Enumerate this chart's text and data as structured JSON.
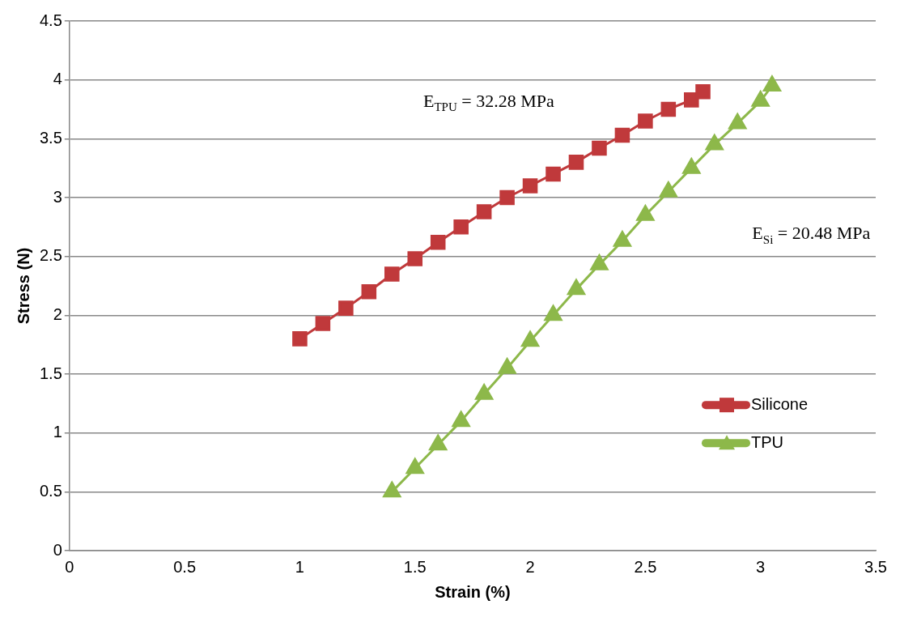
{
  "chart_data": {
    "type": "scatter",
    "xlabel": "Strain (%)",
    "ylabel": "Stress (N)",
    "xlim": [
      0,
      3.5
    ],
    "xticks": [
      0,
      0.5,
      1,
      1.5,
      2,
      2.5,
      3,
      3.5
    ],
    "ylim": [
      0,
      4.5
    ],
    "yticks": [
      0,
      0.5,
      1,
      1.5,
      2,
      2.5,
      3,
      3.5,
      4,
      4.5
    ],
    "grid": "y",
    "legend": "right",
    "line_style": "solid",
    "series": [
      {
        "name": "Silicone",
        "type": "line",
        "color": "#c0393b",
        "marker": "square",
        "x": [
          1.0,
          1.1,
          1.2,
          1.3,
          1.4,
          1.5,
          1.6,
          1.7,
          1.8,
          1.9,
          2.0,
          2.1,
          2.2,
          2.3,
          2.4,
          2.5,
          2.6,
          2.7,
          2.75
        ],
        "values": [
          1.8,
          1.93,
          2.06,
          2.2,
          2.35,
          2.48,
          2.62,
          2.75,
          2.88,
          3.0,
          3.1,
          3.2,
          3.3,
          3.42,
          3.53,
          3.65,
          3.75,
          3.83,
          3.9
        ]
      },
      {
        "name": "TPU",
        "type": "line",
        "color": "#8db84a",
        "marker": "triangle",
        "x": [
          1.4,
          1.5,
          1.6,
          1.7,
          1.8,
          1.9,
          2.0,
          2.1,
          2.2,
          2.3,
          2.4,
          2.5,
          2.6,
          2.7,
          2.8,
          2.9,
          3.0,
          3.05
        ],
        "values": [
          0.5,
          0.7,
          0.9,
          1.1,
          1.33,
          1.55,
          1.78,
          2.0,
          2.22,
          2.43,
          2.63,
          2.85,
          3.05,
          3.25,
          3.45,
          3.63,
          3.82,
          3.95
        ]
      }
    ],
    "annotations": [
      "E$_{TPU}$ = 32.28 MPa",
      "E$_{Si}$ = 20.48 MPa"
    ]
  }
}
